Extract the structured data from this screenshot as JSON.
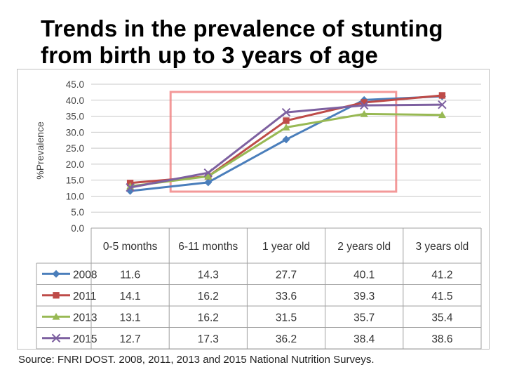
{
  "slide": {
    "title": "Trends in the prevalence of stunting from birth up to 3 years of age",
    "source": "Source: FNRI DOST. 2008, 2011, 2013 and 2015 National Nutrition Surveys."
  },
  "chart_data": {
    "type": "line",
    "title": "",
    "xlabel": "",
    "ylabel": "%Prevalence",
    "ylim": [
      0,
      45
    ],
    "yticks": [
      "0.0",
      "5.0",
      "10.0",
      "15.0",
      "20.0",
      "25.0",
      "30.0",
      "35.0",
      "40.0",
      "45.0"
    ],
    "categories": [
      "0-5 months",
      "6-11 months",
      "1 year old",
      "2 years old",
      "3 years old"
    ],
    "grid": true,
    "legend": "table below chart",
    "highlight_box": {
      "from_category": "6-11 months",
      "to_category": "2 years old",
      "color": "#f08080"
    },
    "series": [
      {
        "name": "2008",
        "values": [
          11.6,
          14.3,
          27.7,
          40.1,
          41.2
        ],
        "color": "#4a7ebb",
        "marker": "diamond"
      },
      {
        "name": "2011",
        "values": [
          14.1,
          16.2,
          33.6,
          39.3,
          41.5
        ],
        "color": "#be4b48",
        "marker": "square"
      },
      {
        "name": "2013",
        "values": [
          13.1,
          16.2,
          31.5,
          35.7,
          35.4
        ],
        "color": "#98b954",
        "marker": "triangle"
      },
      {
        "name": "2015",
        "values": [
          12.7,
          17.3,
          36.2,
          38.4,
          38.6
        ],
        "color": "#7d60a0",
        "marker": "x"
      }
    ],
    "table_values": [
      [
        "11.6",
        "14.3",
        "27.7",
        "40.1",
        "41.2"
      ],
      [
        "14.1",
        "16.2",
        "33.6",
        "39.3",
        "41.5"
      ],
      [
        "13.1",
        "16.2",
        "31.5",
        "35.7",
        "35.4"
      ],
      [
        "12.7",
        "17.3",
        "36.2",
        "38.4",
        "38.6"
      ]
    ]
  }
}
